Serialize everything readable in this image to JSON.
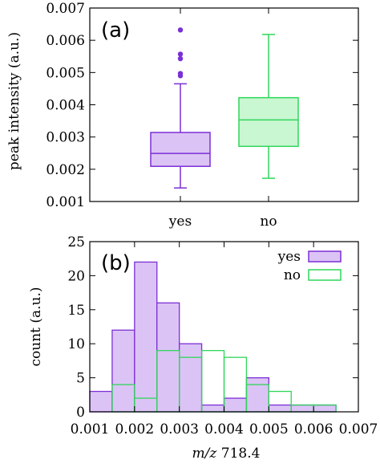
{
  "colors": {
    "yes": "#7b2fd6",
    "yes_fill": "#dcc3f5",
    "no": "#2fd65a",
    "no_fill": "#c9f7d2"
  },
  "chart_data": [
    {
      "type": "box",
      "panel_label": "(a)",
      "ylabel": "peak intensity (a.u.)",
      "ylim": [
        0.001,
        0.007
      ],
      "yticks": [
        "0.001",
        "0.002",
        "0.003",
        "0.004",
        "0.005",
        "0.006",
        "0.007"
      ],
      "categories": [
        "yes",
        "no"
      ],
      "boxes": [
        {
          "category": "yes",
          "whisker_low": 0.00142,
          "q1": 0.00209,
          "median": 0.00249,
          "q3": 0.00314,
          "whisker_high": 0.00465,
          "outliers": [
            0.0049,
            0.00497,
            0.00543,
            0.00557,
            0.00632
          ]
        },
        {
          "category": "no",
          "whisker_low": 0.00172,
          "q1": 0.00271,
          "median": 0.00353,
          "q3": 0.00422,
          "whisker_high": 0.00618,
          "outliers": []
        }
      ]
    },
    {
      "type": "histogram",
      "panel_label": "(b)",
      "xlabel_italic": "m/z",
      "xlabel_rest": " 718.4",
      "ylabel": "count (a.u.)",
      "xlim": [
        0.001,
        0.007
      ],
      "ylim": [
        0,
        25
      ],
      "xticks": [
        "0.001",
        "0.002",
        "0.003",
        "0.004",
        "0.005",
        "0.006",
        "0.007"
      ],
      "yticks": [
        "0",
        "5",
        "10",
        "15",
        "20",
        "25"
      ],
      "bin_edges": [
        0.001,
        0.0015,
        0.002,
        0.0025,
        0.003,
        0.0035,
        0.004,
        0.0045,
        0.005,
        0.0055,
        0.006,
        0.0065
      ],
      "series": [
        {
          "name": "yes",
          "values": [
            3,
            12,
            22,
            16,
            10,
            1,
            2,
            5,
            1,
            1,
            1
          ]
        },
        {
          "name": "no",
          "values": [
            0,
            4,
            2,
            9,
            8,
            9,
            8,
            4,
            3,
            1,
            1
          ]
        }
      ],
      "legend": "top-right"
    }
  ]
}
